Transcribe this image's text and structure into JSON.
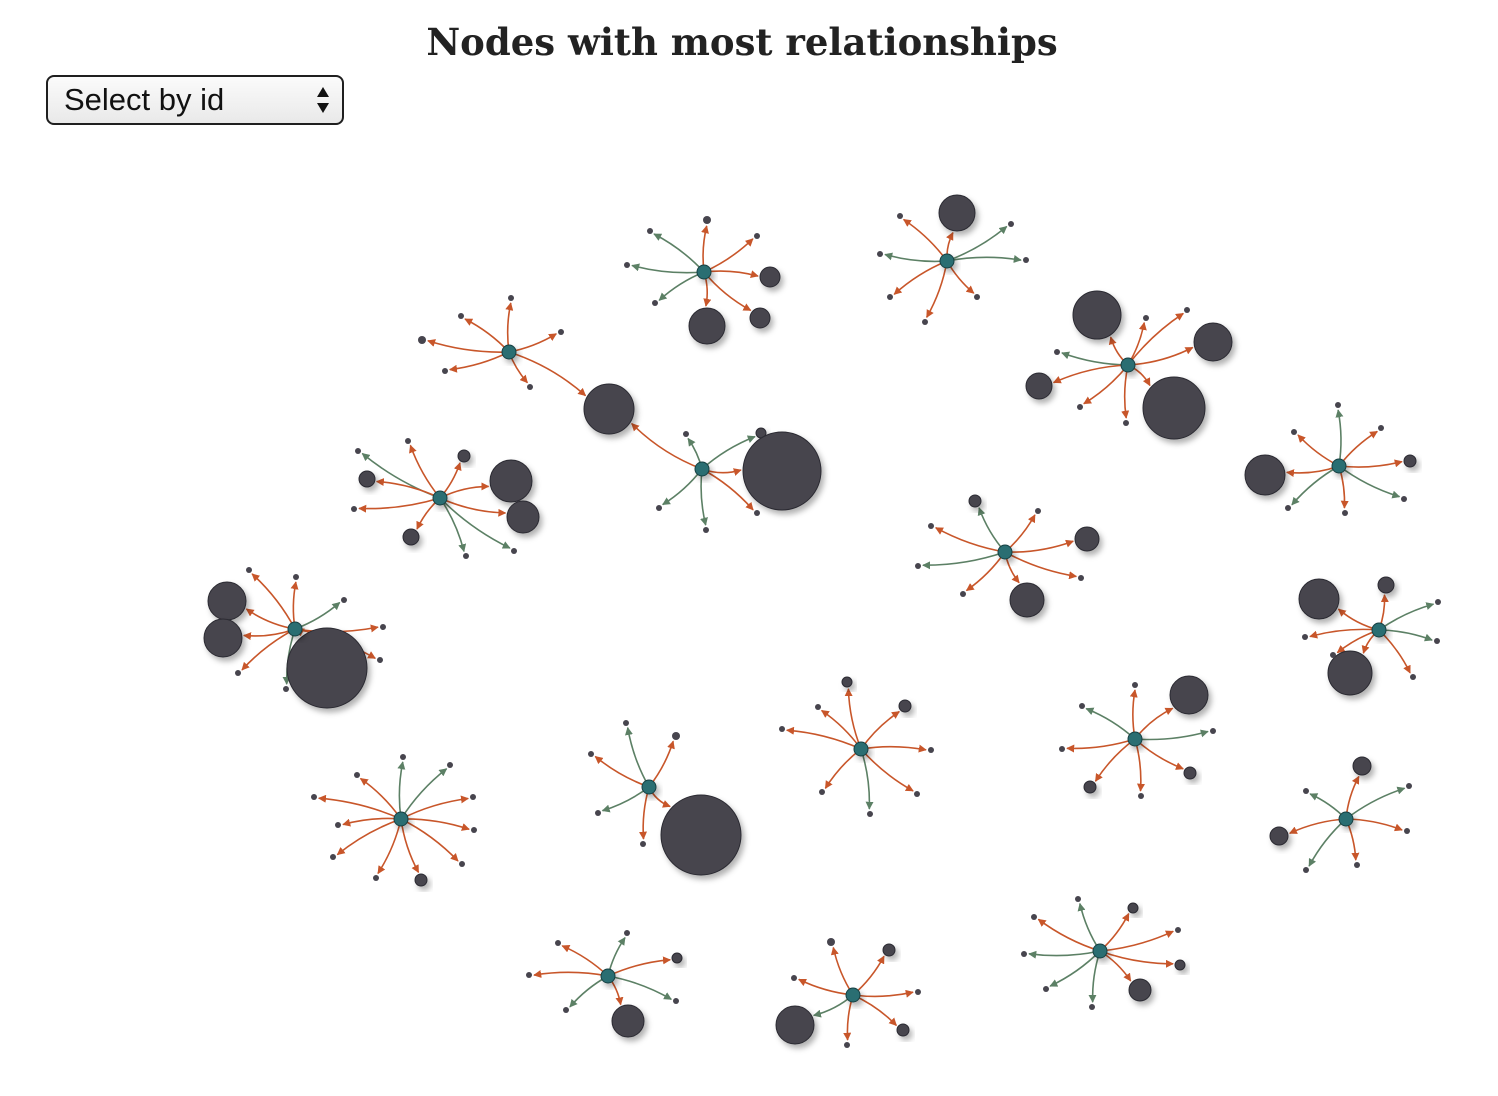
{
  "title": "Nodes with most relationships",
  "select": {
    "label": "Select by id"
  },
  "colors": {
    "link_out": "#c8562a",
    "link_in": "#5c8065",
    "hub": "#2a6e72",
    "node": "#47454e"
  },
  "icons": {
    "select_arrows": "up-down-chevron-icon"
  }
}
